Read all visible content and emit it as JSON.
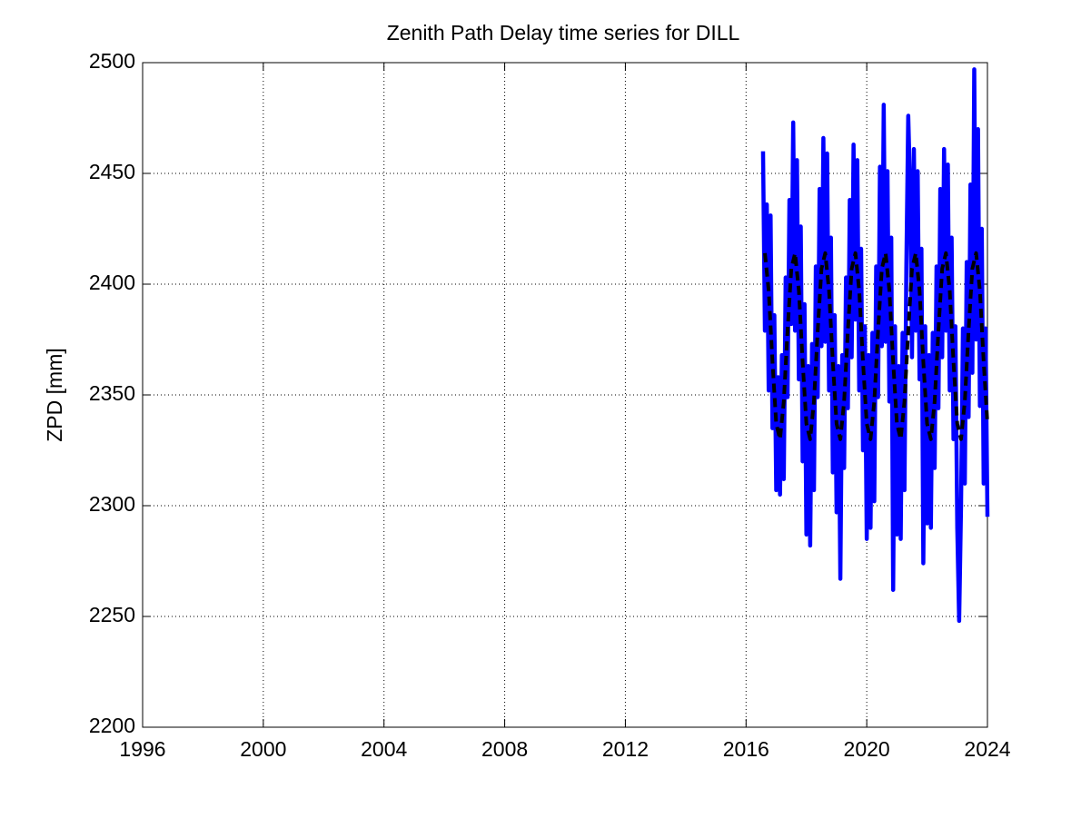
{
  "chart_data": {
    "type": "line",
    "title": "Zenith Path Delay time series for DILL",
    "ylabel": "ZPD [mm]",
    "xlim": [
      1996,
      2024
    ],
    "xticks": [
      1996,
      2000,
      2004,
      2008,
      2012,
      2016,
      2020,
      2024
    ],
    "ylim": [
      2200,
      2500
    ],
    "yticks": [
      2200,
      2250,
      2300,
      2350,
      2400,
      2450,
      2500
    ],
    "grid": true,
    "series": [
      {
        "color": "#0000ff",
        "line_style": "solid",
        "x": [
          2016.5625,
          2016.625,
          2016.6875,
          2016.75,
          2016.8125,
          2016.875,
          2016.9375,
          2017,
          2017.0625,
          2017.125,
          2017.1875,
          2017.25,
          2017.3125,
          2017.375,
          2017.4375,
          2017.5,
          2017.5625,
          2017.625,
          2017.6875,
          2017.75,
          2017.8125,
          2017.875,
          2017.9375,
          2018,
          2018.0625,
          2018.125,
          2018.1875,
          2018.25,
          2018.3125,
          2018.375,
          2018.4375,
          2018.5,
          2018.5625,
          2018.625,
          2018.6875,
          2018.75,
          2018.8125,
          2018.875,
          2018.9375,
          2019,
          2019.0625,
          2019.125,
          2019.1875,
          2019.25,
          2019.3125,
          2019.375,
          2019.4375,
          2019.5,
          2019.5625,
          2019.625,
          2019.6875,
          2019.75,
          2019.8125,
          2019.875,
          2019.9375,
          2020,
          2020.0625,
          2020.125,
          2020.1875,
          2020.25,
          2020.3125,
          2020.375,
          2020.4375,
          2020.5,
          2020.5625,
          2020.625,
          2020.6875,
          2020.75,
          2020.8125,
          2020.875,
          2020.9375,
          2021,
          2021.0625,
          2021.125,
          2021.1875,
          2021.25,
          2021.3125,
          2021.375,
          2021.4375,
          2021.5,
          2021.5625,
          2021.625,
          2021.6875,
          2021.75,
          2021.8125,
          2021.875,
          2021.9375,
          2022,
          2022.0625,
          2022.125,
          2022.1875,
          2022.25,
          2022.3125,
          2022.375,
          2022.4375,
          2022.5,
          2022.5625,
          2022.625,
          2022.6875,
          2022.75,
          2022.8125,
          2022.875,
          2022.9375,
          2023,
          2023.0625,
          2023.125,
          2023.1875,
          2023.25,
          2023.3125,
          2023.375,
          2023.4375,
          2023.5,
          2023.5625,
          2023.625,
          2023.6875,
          2023.75,
          2023.8125,
          2023.875,
          2023.9375,
          2024
        ],
        "values": [
          2460,
          2379,
          2436,
          2352,
          2431,
          2335,
          2386,
          2307,
          2358,
          2305,
          2368,
          2312,
          2403,
          2349,
          2438,
          2382,
          2473,
          2379,
          2456,
          2357,
          2426,
          2320,
          2391,
          2287,
          2363,
          2282,
          2373,
          2307,
          2408,
          2349,
          2443,
          2372,
          2466,
          2374,
          2459,
          2352,
          2421,
          2315,
          2386,
          2297,
          2363,
          2267,
          2368,
          2317,
          2403,
          2344,
          2438,
          2367,
          2463,
          2384,
          2456,
          2352,
          2416,
          2325,
          2381,
          2285,
          2368,
          2290,
          2378,
          2302,
          2408,
          2349,
          2453,
          2372,
          2481,
          2374,
          2451,
          2347,
          2421,
          2262,
          2381,
          2287,
          2363,
          2285,
          2378,
          2307,
          2408,
          2476,
          2443,
          2367,
          2461,
          2379,
          2451,
          2357,
          2416,
          2274,
          2381,
          2292,
          2368,
          2290,
          2378,
          2317,
          2408,
          2344,
          2443,
          2367,
          2461,
          2379,
          2454,
          2352,
          2421,
          2330,
          2381,
          2290,
          2248,
          2300,
          2380,
          2310,
          2410,
          2340,
          2445,
          2360,
          2497,
          2375,
          2470,
          2345,
          2425,
          2310,
          2380,
          2295
        ]
      },
      {
        "color": "#000000",
        "line_style": "dashed",
        "x": [
          2016.625,
          2016.75,
          2016.875,
          2017,
          2017.125,
          2017.25,
          2017.375,
          2017.5,
          2017.625,
          2017.75,
          2017.875,
          2018,
          2018.125,
          2018.25,
          2018.375,
          2018.5,
          2018.625,
          2018.75,
          2018.875,
          2019,
          2019.125,
          2019.25,
          2019.375,
          2019.5,
          2019.625,
          2019.75,
          2019.875,
          2020,
          2020.125,
          2020.25,
          2020.375,
          2020.5,
          2020.625,
          2020.75,
          2020.875,
          2021,
          2021.125,
          2021.25,
          2021.375,
          2021.5,
          2021.625,
          2021.75,
          2021.875,
          2022,
          2022.125,
          2022.25,
          2022.375,
          2022.5,
          2022.625,
          2022.75,
          2022.875,
          2023,
          2023.125,
          2023.25,
          2023.375,
          2023.5,
          2023.625,
          2023.75,
          2023.875,
          2024
        ],
        "values": [
          2414,
          2397,
          2365,
          2337,
          2330,
          2347,
          2379,
          2407,
          2414,
          2397,
          2365,
          2337,
          2330,
          2347,
          2379,
          2407,
          2414,
          2397,
          2365,
          2337,
          2330,
          2347,
          2379,
          2407,
          2414,
          2397,
          2365,
          2337,
          2330,
          2347,
          2379,
          2407,
          2414,
          2397,
          2365,
          2337,
          2330,
          2347,
          2379,
          2407,
          2414,
          2397,
          2365,
          2337,
          2330,
          2347,
          2379,
          2407,
          2414,
          2397,
          2365,
          2337,
          2330,
          2347,
          2379,
          2407,
          2414,
          2397,
          2365,
          2337
        ]
      }
    ]
  }
}
